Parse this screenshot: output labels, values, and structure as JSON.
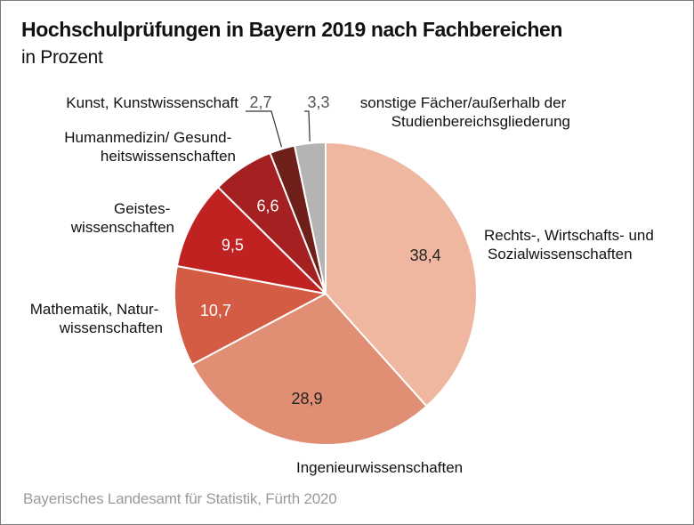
{
  "title": "Hochschulprüfungen in Bayern 2019 nach Fachbereichen",
  "subtitle": "in Prozent",
  "source": "Bayerisches Landesamt für Statistik, Fürth 2020",
  "chart_data": {
    "type": "pie",
    "title": "Hochschulprüfungen in Bayern 2019 nach Fachbereichen",
    "subtitle": "in Prozent",
    "unit": "%",
    "start_angle": "12 o'clock",
    "direction": "clockwise",
    "slices": [
      {
        "label": "Rechts-, Wirtschafts- und Sozialwissenschaften",
        "label_lines": [
          "Rechts-, Wirtschafts- und",
          "Sozialwissenschaften"
        ],
        "value": 38.4,
        "display": "38,4",
        "color": "#efb7a0",
        "text_color": "#222222"
      },
      {
        "label": "Ingenieurwissenschaften",
        "label_lines": [
          "Ingenieurwissenschaften"
        ],
        "value": 28.9,
        "display": "28,9",
        "color": "#e08e74",
        "text_color": "#222222"
      },
      {
        "label": "Mathematik, Naturwissenschaften",
        "label_lines": [
          "Mathematik, Natur-",
          "wissenschaften"
        ],
        "value": 10.7,
        "display": "10,7",
        "color": "#d45c45",
        "text_color": "#ffffff"
      },
      {
        "label": "Geisteswissenschaften",
        "label_lines": [
          "Geistes-",
          "wissenschaften"
        ],
        "value": 9.5,
        "display": "9,5",
        "color": "#c02222",
        "text_color": "#ffffff"
      },
      {
        "label": "Humanmedizin/ Gesundheitswissenschaften",
        "label_lines": [
          "Humanmedizin/ Gesund-",
          "heitswissenschaften"
        ],
        "value": 6.6,
        "display": "6,6",
        "color": "#a52020",
        "text_color": "#ffffff"
      },
      {
        "label": "Kunst, Kunstwissenschaft",
        "label_lines": [
          "Kunst, Kunstwissenschaft"
        ],
        "value": 2.7,
        "display": "2,7",
        "color": "#6e1f1a",
        "text_color": "#555555"
      },
      {
        "label": "sonstige Fächer/außerhalb der Studienbereichsgliederung",
        "label_lines": [
          "sonstige Fächer/außerhalb der",
          "Studienbereichsgliederung"
        ],
        "value": 3.3,
        "display": "3,3",
        "color": "#b3b4b3",
        "text_color": "#555555"
      }
    ]
  }
}
